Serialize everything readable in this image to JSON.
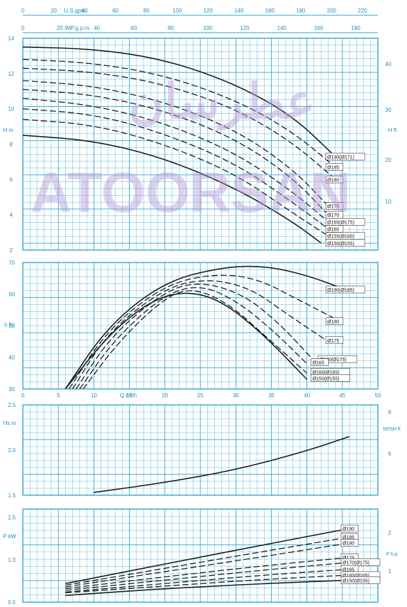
{
  "colors": {
    "grid": "#2aa8cf",
    "frame": "#2aa8cf",
    "axis_text": "#1f8fbf",
    "curve": "#1a1a1a",
    "background": "#ffffff",
    "watermark": "#b69ad6"
  },
  "watermark": {
    "text": "ATOORSAN",
    "logo_text": "عطرسان"
  },
  "chart_data": [
    {
      "id": "head",
      "type": "line",
      "top_axis_1": {
        "label": "U.S.gpm",
        "ticks": [
          "0",
          "20",
          "40",
          "60",
          "80",
          "100",
          "120",
          "140",
          "160",
          "180",
          "200",
          "220"
        ],
        "range": [
          0,
          230
        ]
      },
      "top_axis_2": {
        "label": "IMP.g.p.m.",
        "ticks": [
          "0",
          "20",
          "40",
          "60",
          "80",
          "100",
          "120",
          "140",
          "160",
          "180"
        ],
        "range": [
          0,
          192
        ]
      },
      "xlim": [
        0,
        50
      ],
      "ylabel_left": "H m",
      "ylim": [
        2,
        14
      ],
      "yticks_left": [
        "2",
        "4",
        "6",
        "8",
        "10",
        "12",
        "14"
      ],
      "ylabel_right": "H ft",
      "yticks_right": [
        "10",
        "20",
        "30",
        "40"
      ],
      "series": [
        {
          "name": "Ø190(Ø171)",
          "solid": true,
          "points": [
            [
              0,
              13.5
            ],
            [
              10,
              13.4
            ],
            [
              20,
              12.8
            ],
            [
              30,
              11.4
            ],
            [
              38,
              9.6
            ],
            [
              44,
              7.3
            ]
          ]
        },
        {
          "name": "Ø185",
          "solid": false,
          "points": [
            [
              0,
              12.8
            ],
            [
              10,
              12.6
            ],
            [
              20,
              11.9
            ],
            [
              30,
              10.5
            ],
            [
              38,
              8.7
            ],
            [
              44,
              6.7
            ]
          ]
        },
        {
          "name": "Ø180",
          "solid": false,
          "points": [
            [
              0,
              12.3
            ],
            [
              10,
              12.1
            ],
            [
              20,
              11.4
            ],
            [
              30,
              10.0
            ],
            [
              38,
              8.1
            ],
            [
              44,
              6.0
            ]
          ]
        },
        {
          "name": "Ø175",
          "solid": false,
          "points": [
            [
              0,
              11.6
            ],
            [
              10,
              11.3
            ],
            [
              20,
              10.4
            ],
            [
              30,
              8.8
            ],
            [
              38,
              6.6
            ],
            [
              43,
              4.5
            ]
          ]
        },
        {
          "name": "Ø170",
          "solid": false,
          "points": [
            [
              0,
              11.1
            ],
            [
              10,
              10.8
            ],
            [
              20,
              9.9
            ],
            [
              30,
              8.3
            ],
            [
              38,
              6.1
            ],
            [
              43,
              4.0
            ]
          ]
        },
        {
          "name": "Ø165(Ø175)",
          "solid": false,
          "points": [
            [
              0,
              10.6
            ],
            [
              10,
              10.2
            ],
            [
              20,
              9.2
            ],
            [
              30,
              7.5
            ],
            [
              38,
              5.3
            ],
            [
              43,
              3.6
            ]
          ]
        },
        {
          "name": "Ø160",
          "solid": false,
          "points": [
            [
              0,
              10.0
            ],
            [
              10,
              9.7
            ],
            [
              20,
              8.6
            ],
            [
              30,
              6.9
            ],
            [
              38,
              4.7
            ],
            [
              43,
              3.2
            ]
          ]
        },
        {
          "name": "Ø155(Ø160)",
          "solid": false,
          "points": [
            [
              0,
              9.4
            ],
            [
              10,
              9.1
            ],
            [
              20,
              8.0
            ],
            [
              30,
              6.3
            ],
            [
              38,
              4.1
            ],
            [
              43,
              2.8
            ]
          ]
        },
        {
          "name": "Ø150(Ø155)",
          "solid": true,
          "points": [
            [
              0,
              8.5
            ],
            [
              10,
              8.2
            ],
            [
              20,
              7.2
            ],
            [
              30,
              5.5
            ],
            [
              38,
              3.6
            ],
            [
              42,
              2.4
            ]
          ]
        }
      ]
    },
    {
      "id": "efficiency",
      "type": "line",
      "xlabel": "Q m³/h",
      "xlim": [
        0,
        50
      ],
      "xticks": [
        "0",
        "5",
        "10",
        "15",
        "20",
        "25",
        "30",
        "35",
        "40",
        "45",
        "50"
      ],
      "ylabel": "η %",
      "ylim": [
        30,
        70
      ],
      "yticks": [
        "30",
        "40",
        "50",
        "60",
        "70"
      ],
      "series": [
        {
          "name": "Ø190(Ø185)",
          "solid": true,
          "points": [
            [
              6,
              30
            ],
            [
              12,
              50
            ],
            [
              20,
              64
            ],
            [
              28,
              68.5
            ],
            [
              34,
              69
            ],
            [
              40,
              66
            ],
            [
              46,
              61
            ]
          ]
        },
        {
          "name": "Ø180",
          "solid": false,
          "points": [
            [
              6.5,
              30
            ],
            [
              12,
              49
            ],
            [
              20,
              63
            ],
            [
              27,
              66.5
            ],
            [
              33,
              65
            ],
            [
              39,
              58
            ],
            [
              45,
              51
            ]
          ]
        },
        {
          "name": "Ø175",
          "solid": false,
          "points": [
            [
              7,
              30
            ],
            [
              12,
              48
            ],
            [
              20,
              62
            ],
            [
              26,
              65
            ],
            [
              32,
              62
            ],
            [
              37,
              54
            ],
            [
              43,
              45
            ]
          ]
        },
        {
          "name": "Ø170(Ø175)",
          "solid": false,
          "points": [
            [
              7.5,
              30
            ],
            [
              12.5,
              47
            ],
            [
              20,
              61
            ],
            [
              25,
              64
            ],
            [
              31,
              60
            ],
            [
              36,
              51
            ],
            [
              41,
              39
            ]
          ]
        },
        {
          "name": "Ø165",
          "solid": false,
          "points": [
            [
              8,
              30
            ],
            [
              13,
              46
            ],
            [
              20,
              60
            ],
            [
              25,
              63
            ],
            [
              30,
              58
            ],
            [
              35,
              49
            ],
            [
              40,
              38
            ]
          ]
        },
        {
          "name": "Ø160(Ø165)",
          "solid": false,
          "points": [
            [
              8.5,
              30
            ],
            [
              13.5,
              45
            ],
            [
              20,
              59
            ],
            [
              24,
              62
            ],
            [
              29,
              57
            ],
            [
              34,
              47
            ],
            [
              40,
              35
            ]
          ]
        },
        {
          "name": "Ø150(Ø155)",
          "solid": true,
          "points": [
            [
              6,
              30
            ],
            [
              12,
              47
            ],
            [
              18,
              58
            ],
            [
              23,
              61
            ],
            [
              28,
              58
            ],
            [
              34,
              47
            ],
            [
              40,
              33
            ]
          ]
        }
      ],
      "labels": [
        "Ø190(Ø185)",
        "Ø180",
        "Ø175",
        "Ø170(Ø175)",
        "Ø165",
        "Ø160(Ø165)",
        "Ø150(Ø155)"
      ]
    },
    {
      "id": "npsh",
      "type": "line",
      "xlim": [
        0,
        50
      ],
      "ylabel_left": "Hs m",
      "ylim": [
        1.5,
        2.5
      ],
      "yticks_left": [
        "1.5",
        "2.0",
        "2.5"
      ],
      "ylabel_right": "NPSH ft",
      "yticks_right": [
        "6",
        "8"
      ],
      "series": [
        {
          "name": "NPSH",
          "solid": true,
          "points": [
            [
              10,
              1.53
            ],
            [
              20,
              1.64
            ],
            [
              30,
              1.78
            ],
            [
              40,
              1.99
            ],
            [
              46,
              2.15
            ]
          ]
        }
      ]
    },
    {
      "id": "power",
      "type": "line",
      "xlim": [
        0,
        50
      ],
      "ylabel_left": "P kW",
      "ylim": [
        0.5,
        1.6
      ],
      "yticks_left": [
        "0.5",
        "1.0",
        "1.5"
      ],
      "ylabel_right": "P h.p.",
      "yticks_right": [
        "1",
        "2"
      ],
      "series": [
        {
          "name": "Ø190",
          "solid": true,
          "points": [
            [
              6,
              0.72
            ],
            [
              20,
              0.95
            ],
            [
              34,
              1.18
            ],
            [
              46,
              1.37
            ]
          ]
        },
        {
          "name": "Ø185",
          "solid": false,
          "points": [
            [
              6,
              0.7
            ],
            [
              20,
              0.9
            ],
            [
              34,
              1.1
            ],
            [
              46,
              1.27
            ]
          ]
        },
        {
          "name": "Ø180",
          "solid": false,
          "points": [
            [
              6,
              0.68
            ],
            [
              20,
              0.86
            ],
            [
              34,
              1.04
            ],
            [
              46,
              1.2
            ]
          ]
        },
        {
          "name": "Ø175",
          "solid": false,
          "points": [
            [
              6,
              0.66
            ],
            [
              20,
              0.8
            ],
            [
              34,
              0.93
            ],
            [
              46,
              1.03
            ]
          ]
        },
        {
          "name": "Ø170(Ø175)",
          "solid": false,
          "points": [
            [
              6,
              0.64
            ],
            [
              20,
              0.76
            ],
            [
              34,
              0.88
            ],
            [
              46,
              0.97
            ]
          ]
        },
        {
          "name": "Ø165",
          "solid": false,
          "points": [
            [
              6,
              0.62
            ],
            [
              20,
              0.72
            ],
            [
              34,
              0.82
            ],
            [
              46,
              0.89
            ]
          ]
        },
        {
          "name": "Ø160(Ø165)",
          "solid": false,
          "points": [
            [
              6,
              0.61
            ],
            [
              20,
              0.69
            ],
            [
              34,
              0.77
            ],
            [
              46,
              0.82
            ]
          ]
        },
        {
          "name": "Ø150(Ø155)",
          "solid": true,
          "points": [
            [
              6,
              0.58
            ],
            [
              20,
              0.66
            ],
            [
              34,
              0.72
            ],
            [
              46,
              0.76
            ]
          ]
        }
      ]
    }
  ]
}
